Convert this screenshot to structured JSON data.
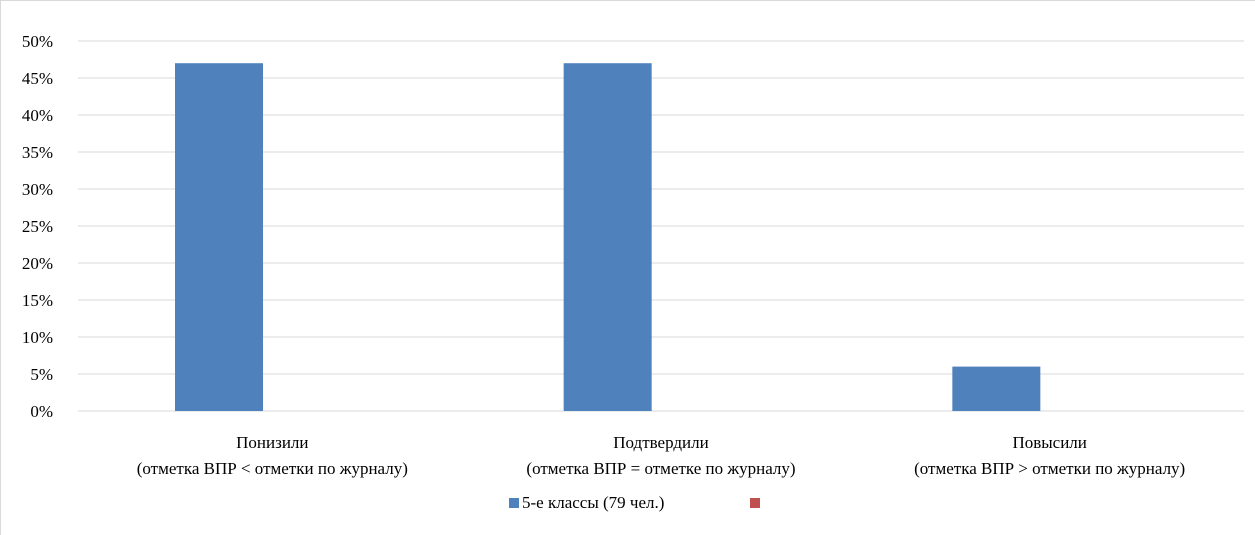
{
  "chart_data": {
    "type": "bar",
    "categories": [
      [
        "Понизили",
        "(отметка ВПР < отметки по журналу)"
      ],
      [
        "Подтвердили",
        "(отметка ВПР = отметке по журналу)"
      ],
      [
        "Повысили",
        "(отметка ВПР > отметки по журналу)"
      ]
    ],
    "series": [
      {
        "name": "5-е классы (79 чел.)",
        "values": [
          47,
          47,
          6
        ],
        "color": "#4f81bd"
      },
      {
        "name": "",
        "values": [
          null,
          null,
          null
        ],
        "color": "#c0504d"
      }
    ],
    "yticks": [
      "0%",
      "5%",
      "10%",
      "15%",
      "20%",
      "25%",
      "30%",
      "35%",
      "40%",
      "45%",
      "50%"
    ],
    "ylim": [
      0,
      50
    ],
    "grid": true,
    "legend_position": "bottom",
    "gridline_color": "#d9d9d9"
  }
}
